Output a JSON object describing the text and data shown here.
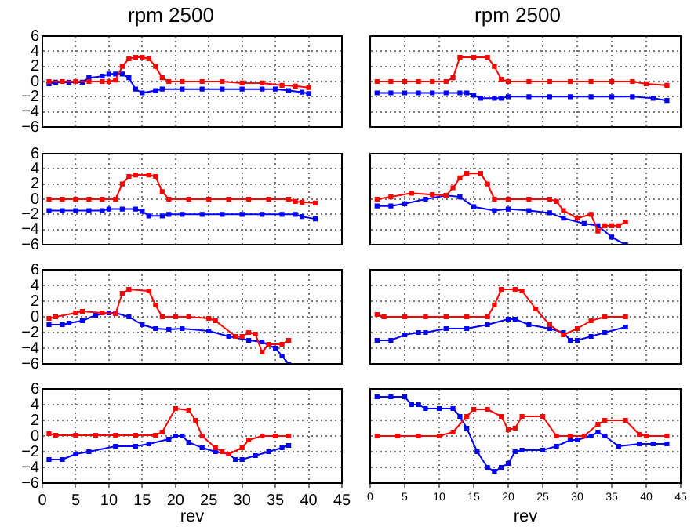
{
  "chart_data": [
    {
      "type": "line",
      "title": "rpm 2500",
      "xlim": [
        0,
        45
      ],
      "xticks": [
        0,
        5,
        10,
        15,
        20,
        25,
        30,
        35,
        40,
        45
      ],
      "ylim": [
        -6,
        6
      ],
      "yticks": [
        -6,
        -4,
        -2,
        0,
        2,
        4,
        6
      ],
      "grid": true,
      "legend": false,
      "marker": "square",
      "line_style": "solid",
      "tick_labels": "y",
      "series": [
        {
          "color": "#ff0000",
          "x": [
            1,
            3,
            5,
            7,
            9,
            10,
            11,
            12,
            13,
            14,
            15,
            16,
            17,
            18,
            19,
            21,
            24,
            27,
            30,
            33,
            36,
            38,
            40
          ],
          "values": [
            0,
            0,
            0,
            0,
            0,
            0,
            0.2,
            2,
            3,
            3.2,
            3.2,
            3,
            2,
            0.5,
            0,
            0,
            0,
            0,
            -0.2,
            -0.2,
            -0.5,
            -0.6,
            -0.8
          ]
        },
        {
          "color": "#0000ff",
          "x": [
            1,
            2,
            4,
            6,
            7,
            9,
            10,
            11,
            12,
            13,
            14,
            15,
            17,
            18,
            21,
            24,
            27,
            30,
            33,
            35,
            37,
            39,
            40
          ],
          "values": [
            -0.3,
            -0.1,
            -0.1,
            -0.1,
            0.5,
            0.7,
            1,
            1,
            1,
            0.5,
            -1,
            -1.5,
            -1.2,
            -1,
            -1,
            -1,
            -1,
            -1,
            -1,
            -1,
            -1.2,
            -1.4,
            -1.6
          ]
        }
      ]
    },
    {
      "type": "line",
      "title": "rpm 2500",
      "xlim": [
        0,
        45
      ],
      "xticks": [
        0,
        5,
        10,
        15,
        20,
        25,
        30,
        35,
        40,
        45
      ],
      "ylim": [
        -6,
        6
      ],
      "yticks": [
        -6,
        -4,
        -2,
        0,
        2,
        4,
        6
      ],
      "grid": true,
      "legend": false,
      "marker": "square",
      "line_style": "solid",
      "tick_labels": false,
      "series": [
        {
          "color": "#ff0000",
          "x": [
            1,
            3,
            5,
            7,
            9,
            11,
            12,
            13,
            15,
            17,
            18,
            19,
            20,
            23,
            26,
            29,
            32,
            35,
            38,
            40,
            43
          ],
          "values": [
            0,
            0,
            0,
            0,
            0,
            0,
            0.5,
            3.2,
            3.2,
            3.2,
            2,
            0.3,
            0,
            0,
            0,
            0,
            0,
            0,
            0,
            -0.3,
            -0.5
          ]
        },
        {
          "color": "#0000ff",
          "x": [
            1,
            3,
            5,
            7,
            9,
            11,
            13,
            14,
            15,
            16,
            18,
            19,
            20,
            23,
            26,
            29,
            32,
            35,
            38,
            41,
            43
          ],
          "values": [
            -1.5,
            -1.5,
            -1.5,
            -1.5,
            -1.5,
            -1.5,
            -1.5,
            -1.5,
            -1.8,
            -2.2,
            -2.2,
            -2.2,
            -2,
            -2,
            -2,
            -2,
            -2,
            -2,
            -2,
            -2.2,
            -2.5
          ]
        }
      ]
    },
    {
      "type": "line",
      "xlim": [
        0,
        45
      ],
      "xticks": [
        0,
        5,
        10,
        15,
        20,
        25,
        30,
        35,
        40,
        45
      ],
      "ylim": [
        -6,
        6
      ],
      "yticks": [
        -6,
        -4,
        -2,
        0,
        2,
        4,
        6
      ],
      "grid": true,
      "legend": false,
      "marker": "square",
      "line_style": "solid",
      "tick_labels": "y",
      "series": [
        {
          "color": "#ff0000",
          "x": [
            1,
            3,
            5,
            7,
            9,
            11,
            12,
            13,
            14,
            16,
            17,
            18,
            19,
            22,
            25,
            28,
            31,
            34,
            37,
            38,
            39,
            41
          ],
          "values": [
            0,
            0,
            0,
            0,
            0,
            0,
            2,
            3,
            3.2,
            3.2,
            3,
            1,
            0,
            0,
            0,
            0,
            0,
            0,
            0,
            -0.3,
            -0.4,
            -0.5
          ]
        },
        {
          "color": "#0000ff",
          "x": [
            1,
            3,
            5,
            7,
            9,
            10,
            12,
            14,
            15,
            16,
            18,
            19,
            21,
            24,
            27,
            30,
            33,
            36,
            38,
            39,
            41
          ],
          "values": [
            -1.5,
            -1.5,
            -1.5,
            -1.5,
            -1.5,
            -1.3,
            -1.3,
            -1.3,
            -1.6,
            -2.2,
            -2.2,
            -2,
            -2,
            -2,
            -2,
            -2,
            -2,
            -2,
            -2,
            -2.3,
            -2.6
          ]
        }
      ]
    },
    {
      "type": "line",
      "xlim": [
        0,
        45
      ],
      "xticks": [
        0,
        5,
        10,
        15,
        20,
        25,
        30,
        35,
        40,
        45
      ],
      "ylim": [
        -6,
        6
      ],
      "yticks": [
        -6,
        -4,
        -2,
        0,
        2,
        4,
        6
      ],
      "grid": true,
      "legend": false,
      "marker": "square",
      "line_style": "solid",
      "tick_labels": false,
      "series": [
        {
          "color": "#ff0000",
          "x": [
            1,
            3,
            6,
            9,
            11,
            12,
            13,
            14,
            16,
            17,
            18,
            20,
            23,
            26,
            27,
            28,
            30,
            32,
            33,
            34,
            35,
            36,
            37
          ],
          "values": [
            0,
            0.3,
            0.8,
            0.6,
            0.5,
            1.5,
            2.8,
            3.4,
            3.4,
            2,
            0,
            0,
            0,
            0,
            -0.3,
            -1.5,
            -2.5,
            -2,
            -4.2,
            -3.5,
            -3.5,
            -3.5,
            -3
          ]
        },
        {
          "color": "#0000ff",
          "x": [
            1,
            3,
            5,
            8,
            11,
            13,
            15,
            18,
            20,
            23,
            26,
            28,
            31,
            33,
            35,
            37
          ],
          "values": [
            -0.9,
            -0.9,
            -0.6,
            0,
            0.5,
            0.3,
            -1,
            -1.5,
            -1.3,
            -1.5,
            -1.8,
            -2.5,
            -3.2,
            -3.5,
            -5,
            -6
          ]
        }
      ]
    },
    {
      "type": "line",
      "xlim": [
        0,
        45
      ],
      "xticks": [
        0,
        5,
        10,
        15,
        20,
        25,
        30,
        35,
        40,
        45
      ],
      "ylim": [
        -6,
        6
      ],
      "yticks": [
        -6,
        -4,
        -2,
        0,
        2,
        4,
        6
      ],
      "grid": true,
      "legend": false,
      "marker": "square",
      "line_style": "solid",
      "tick_labels": "y",
      "series": [
        {
          "color": "#ff0000",
          "x": [
            1,
            2,
            5,
            6,
            9,
            11,
            12,
            13,
            16,
            17,
            18,
            20,
            22,
            25,
            26,
            29,
            30,
            31,
            32,
            33,
            34,
            36,
            37
          ],
          "values": [
            -0.2,
            0,
            0.5,
            0.7,
            0.5,
            0.4,
            3,
            3.5,
            3.3,
            1.5,
            0,
            0,
            0,
            -0.2,
            -0.5,
            -2.5,
            -2.5,
            -2,
            -2.2,
            -4.5,
            -3.5,
            -3.5,
            -3
          ]
        },
        {
          "color": "#0000ff",
          "x": [
            1,
            3,
            4,
            6,
            8,
            10,
            11,
            13,
            15,
            17,
            19,
            21,
            25,
            28,
            31,
            33,
            35,
            36,
            37
          ],
          "values": [
            -1,
            -1,
            -0.8,
            -0.5,
            0.2,
            0.5,
            0.5,
            0,
            -1,
            -1.5,
            -1.6,
            -1.5,
            -1.8,
            -2.5,
            -3,
            -3.2,
            -4,
            -5,
            -6
          ]
        }
      ]
    },
    {
      "type": "line",
      "xlim": [
        0,
        45
      ],
      "xticks": [
        0,
        5,
        10,
        15,
        20,
        25,
        30,
        35,
        40,
        45
      ],
      "ylim": [
        -6,
        6
      ],
      "yticks": [
        -6,
        -4,
        -2,
        0,
        2,
        4,
        6
      ],
      "grid": true,
      "legend": false,
      "marker": "square",
      "line_style": "solid",
      "tick_labels": false,
      "series": [
        {
          "color": "#ff0000",
          "x": [
            1,
            2,
            5,
            8,
            11,
            14,
            17,
            18,
            19,
            21,
            22,
            24,
            26,
            28,
            30,
            32,
            34,
            37
          ],
          "values": [
            0.3,
            0,
            0,
            0,
            0,
            0,
            0,
            1.5,
            3.5,
            3.5,
            3.3,
            1,
            -1,
            -2.3,
            -1.5,
            -0.5,
            0,
            0
          ]
        },
        {
          "color": "#0000ff",
          "x": [
            1,
            3,
            5,
            7,
            8,
            11,
            14,
            17,
            20,
            21,
            23,
            26,
            28,
            29,
            30,
            32,
            34,
            37
          ],
          "values": [
            -3,
            -3,
            -2.3,
            -2,
            -2,
            -1.5,
            -1.5,
            -1,
            -0.3,
            -0.3,
            -1,
            -1.5,
            -2,
            -3,
            -3,
            -2.5,
            -2,
            -1.3
          ]
        }
      ]
    },
    {
      "type": "line",
      "xlabel": "rev",
      "xlim": [
        0,
        45
      ],
      "xticks": [
        0,
        5,
        10,
        15,
        20,
        25,
        30,
        35,
        40,
        45
      ],
      "ylim": [
        -6,
        6
      ],
      "yticks": [
        -6,
        -4,
        -2,
        0,
        2,
        4,
        6
      ],
      "grid": true,
      "legend": false,
      "marker": "square",
      "line_style": "solid",
      "series": [
        {
          "color": "#ff0000",
          "x": [
            1,
            2,
            5,
            8,
            11,
            14,
            17,
            18,
            20,
            22,
            23,
            24,
            26,
            27,
            28,
            30,
            31,
            33,
            35,
            37
          ],
          "values": [
            0.3,
            0.1,
            0.1,
            0.1,
            0.1,
            0.1,
            0.1,
            0.5,
            3.5,
            3.3,
            2,
            0,
            -1.5,
            -2,
            -2.3,
            -1.5,
            -0.5,
            0,
            0,
            0
          ]
        },
        {
          "color": "#0000ff",
          "x": [
            1,
            3,
            5,
            7,
            11,
            14,
            16,
            19,
            20,
            21,
            22,
            24,
            26,
            28,
            29,
            30,
            32,
            34,
            36,
            37
          ],
          "values": [
            -3,
            -3,
            -2.3,
            -2,
            -1.3,
            -1.3,
            -1,
            -0.4,
            0,
            0,
            -0.8,
            -1.5,
            -2,
            -2.3,
            -3,
            -3,
            -2.5,
            -2,
            -1.5,
            -1.2
          ]
        }
      ]
    },
    {
      "type": "line",
      "xlabel": "rev",
      "xlim": [
        0,
        45
      ],
      "xticks": [
        0,
        5,
        10,
        15,
        20,
        25,
        30,
        35,
        40,
        45
      ],
      "ylim": [
        -6,
        6
      ],
      "yticks": [
        -6,
        -4,
        -2,
        0,
        2,
        4,
        6
      ],
      "grid": true,
      "legend": false,
      "marker": "square",
      "line_style": "solid",
      "tick_labels": "x",
      "series": [
        {
          "color": "#ff0000",
          "x": [
            1,
            4,
            7,
            10,
            12,
            14,
            15,
            17,
            19,
            20,
            21,
            22,
            25,
            27,
            29,
            31,
            33,
            34,
            37,
            39,
            40,
            43
          ],
          "values": [
            0,
            0,
            0,
            0,
            0.5,
            2.5,
            3.4,
            3.4,
            2.5,
            0.8,
            1,
            2.5,
            2.5,
            0,
            0,
            0,
            1.5,
            2,
            2,
            0.2,
            0,
            0
          ]
        },
        {
          "color": "#0000ff",
          "x": [
            1,
            3,
            5,
            6,
            7,
            8,
            10,
            12,
            13,
            14,
            15.5,
            17,
            18,
            19,
            20,
            21,
            22,
            25,
            27,
            29,
            30,
            32,
            33,
            34,
            36,
            39,
            41,
            43
          ],
          "values": [
            5,
            5,
            5,
            4,
            4,
            3.5,
            3.5,
            3.5,
            2.5,
            1,
            -2,
            -4,
            -4.5,
            -4,
            -3.5,
            -2,
            -1.8,
            -1.8,
            -1.3,
            -0.5,
            -0.5,
            0,
            0.5,
            0,
            -1.3,
            -1,
            -1,
            -1
          ]
        }
      ]
    }
  ]
}
